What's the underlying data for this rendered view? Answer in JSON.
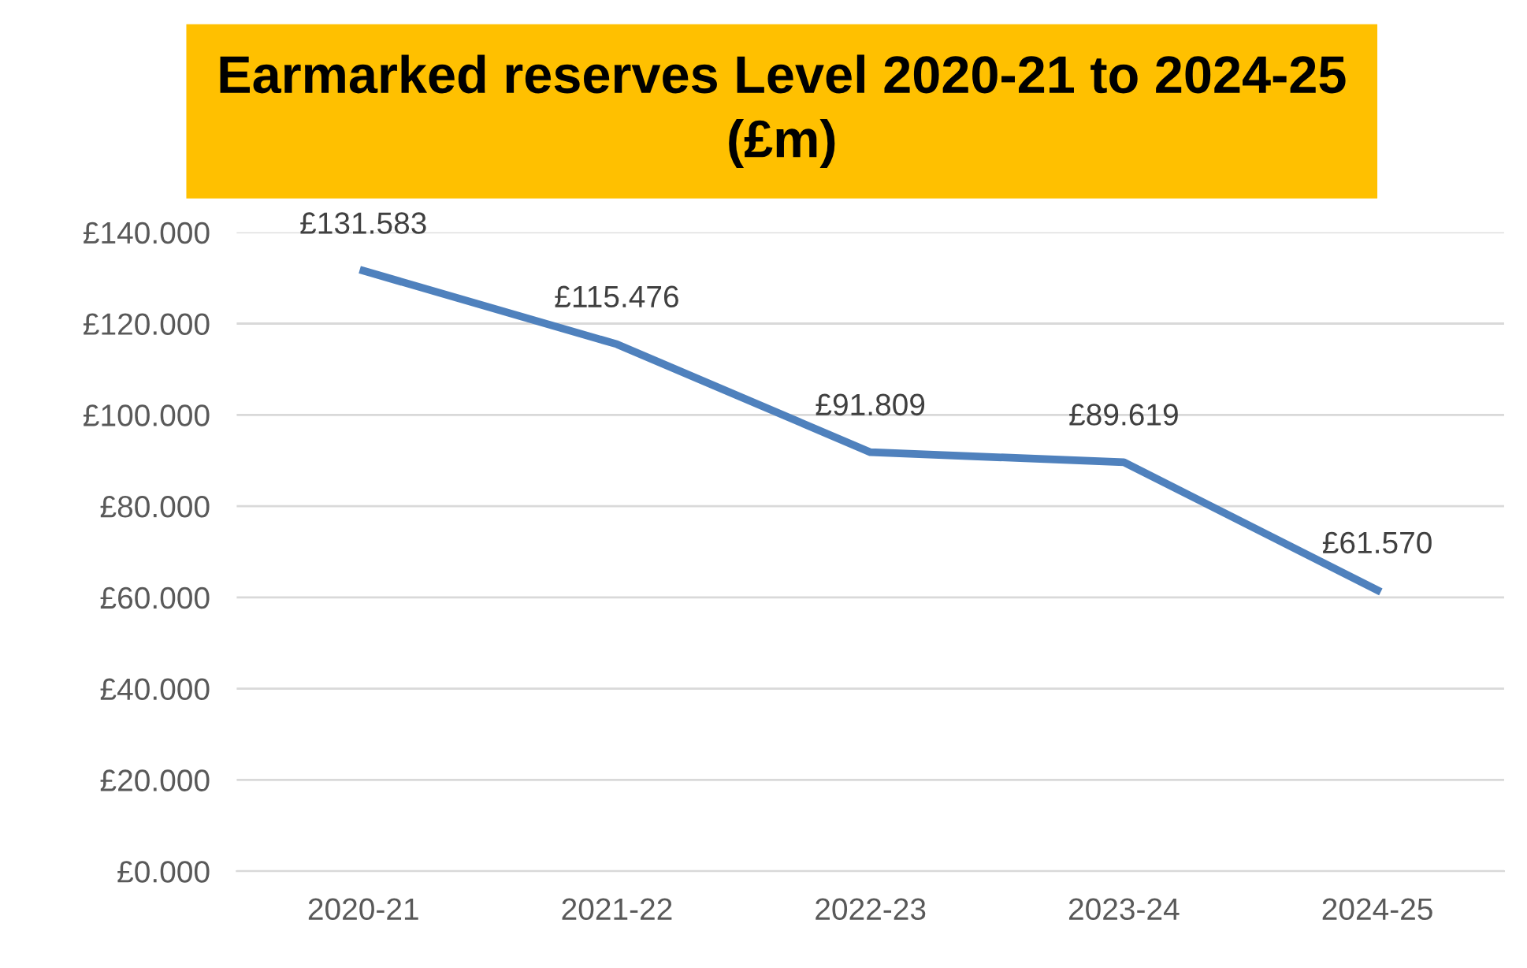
{
  "chart_data": {
    "type": "line",
    "title": "Earmarked reserves Level 2020-21 to 2024-25\n(£m)",
    "categories": [
      "2020-21",
      "2021-22",
      "2022-23",
      "2023-24",
      "2024-25"
    ],
    "series": [
      {
        "color": "#4f81bd",
        "values": [
          131.583,
          115.476,
          91.809,
          89.619,
          61.57
        ],
        "value_labels": [
          "£131.583",
          "£115.476",
          "£91.809",
          "£89.619",
          "£61.570"
        ]
      }
    ],
    "ylim": [
      0,
      140
    ],
    "yticks": [
      {
        "value": 0,
        "label": "£0.000"
      },
      {
        "value": 20,
        "label": "£20.000"
      },
      {
        "value": 40,
        "label": "£40.000"
      },
      {
        "value": 60,
        "label": "£60.000"
      },
      {
        "value": 80,
        "label": "£80.000"
      },
      {
        "value": 100,
        "label": "£100.000"
      },
      {
        "value": 120,
        "label": "£120.000"
      },
      {
        "value": 140,
        "label": "£140.000"
      }
    ],
    "grid": "y",
    "marker": "none",
    "line_style": "solid",
    "legend": false
  }
}
